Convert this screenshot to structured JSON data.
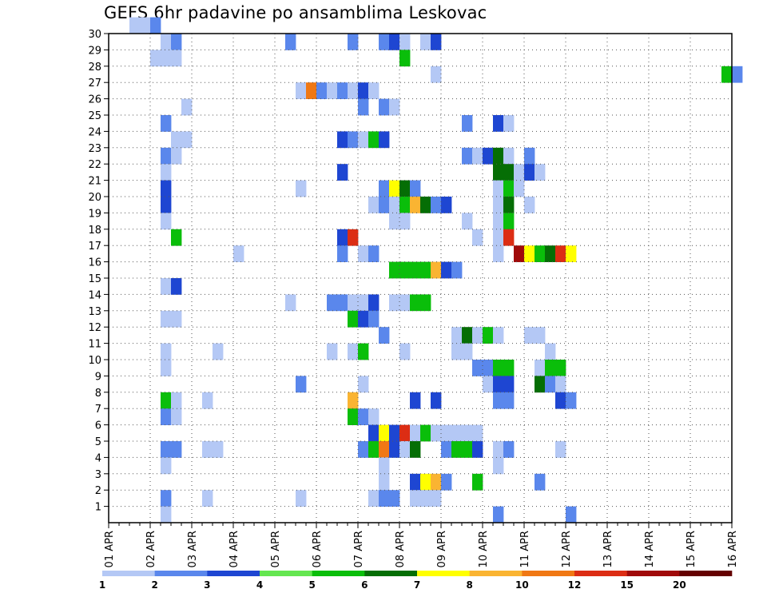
{
  "chart_data": {
    "type": "heatmap",
    "title": "GEFS 6hr padavine po ansamblima Leskovac",
    "x_tick_labels": [
      "01 APR",
      "02 APR",
      "03 APR",
      "04 APR",
      "05 APR",
      "06 APR",
      "07 APR",
      "08 APR",
      "09 APR",
      "10 APR",
      "11 APR",
      "12 APR",
      "13 APR",
      "14 APR",
      "15 APR",
      "16 APR"
    ],
    "y_tick_labels": [
      "1",
      "2",
      "3",
      "4",
      "5",
      "6",
      "7",
      "8",
      "9",
      "10",
      "11",
      "12",
      "13",
      "14",
      "15",
      "16",
      "17",
      "18",
      "19",
      "20",
      "21",
      "22",
      "23",
      "24",
      "25",
      "26",
      "27",
      "28",
      "29",
      "30"
    ],
    "x_range_steps": [
      0,
      60
    ],
    "y_range": [
      0,
      30
    ],
    "grid": true,
    "colorbar": {
      "labels": [
        "1",
        "2",
        "3",
        "4",
        "5",
        "6",
        "7",
        "8",
        "10",
        "12",
        "15",
        "20"
      ],
      "colors": [
        "#b4c8f5",
        "#5a87ec",
        "#1e46d2",
        "#64e650",
        "#0abe0a",
        "#056e05",
        "#ffff00",
        "#fab432",
        "#f07814",
        "#dc2d14",
        "#a00a0a",
        "#640000"
      ]
    },
    "cells": [
      [
        2,
        30,
        0
      ],
      [
        3,
        30,
        0
      ],
      [
        4,
        30,
        1
      ],
      [
        17,
        29,
        1
      ],
      [
        5,
        29,
        0
      ],
      [
        6,
        29,
        1
      ],
      [
        23,
        29,
        1
      ],
      [
        26,
        29,
        1
      ],
      [
        27,
        29,
        2
      ],
      [
        28,
        29,
        0
      ],
      [
        30,
        29,
        0
      ],
      [
        31,
        29,
        2
      ],
      [
        6,
        28,
        0
      ],
      [
        5,
        28,
        0
      ],
      [
        4,
        28,
        0
      ],
      [
        28,
        28,
        4
      ],
      [
        31,
        27,
        0
      ],
      [
        59,
        27,
        4
      ],
      [
        60,
        27,
        1
      ],
      [
        18,
        26,
        0
      ],
      [
        19,
        26,
        8
      ],
      [
        20,
        26,
        1
      ],
      [
        21,
        26,
        0
      ],
      [
        22,
        26,
        1
      ],
      [
        23,
        26,
        0
      ],
      [
        24,
        26,
        2
      ],
      [
        25,
        26,
        0
      ],
      [
        7,
        25,
        0
      ],
      [
        24,
        25,
        1
      ],
      [
        26,
        25,
        1
      ],
      [
        27,
        25,
        0
      ],
      [
        5,
        24,
        1
      ],
      [
        34,
        24,
        1
      ],
      [
        37,
        24,
        2
      ],
      [
        38,
        24,
        0
      ],
      [
        6,
        23,
        0
      ],
      [
        7,
        23,
        0
      ],
      [
        22,
        23,
        2
      ],
      [
        23,
        23,
        1
      ],
      [
        24,
        23,
        0
      ],
      [
        25,
        23,
        4
      ],
      [
        26,
        23,
        2
      ],
      [
        5,
        22,
        1
      ],
      [
        6,
        22,
        0
      ],
      [
        34,
        22,
        1
      ],
      [
        35,
        22,
        0
      ],
      [
        36,
        22,
        2
      ],
      [
        37,
        22,
        5
      ],
      [
        38,
        22,
        0
      ],
      [
        40,
        22,
        1
      ],
      [
        5,
        21,
        0
      ],
      [
        22,
        21,
        2
      ],
      [
        37,
        21,
        5
      ],
      [
        38,
        21,
        5
      ],
      [
        39,
        21,
        0
      ],
      [
        40,
        21,
        2
      ],
      [
        41,
        21,
        0
      ],
      [
        5,
        20,
        2
      ],
      [
        18,
        20,
        0
      ],
      [
        26,
        20,
        1
      ],
      [
        27,
        20,
        6
      ],
      [
        28,
        20,
        5
      ],
      [
        29,
        20,
        1
      ],
      [
        37,
        20,
        0
      ],
      [
        38,
        20,
        4
      ],
      [
        39,
        20,
        0
      ],
      [
        5,
        19,
        2
      ],
      [
        25,
        19,
        0
      ],
      [
        26,
        19,
        1
      ],
      [
        27,
        19,
        0
      ],
      [
        28,
        19,
        4
      ],
      [
        29,
        19,
        7
      ],
      [
        30,
        19,
        5
      ],
      [
        31,
        19,
        1
      ],
      [
        32,
        19,
        2
      ],
      [
        37,
        19,
        0
      ],
      [
        38,
        19,
        5
      ],
      [
        40,
        19,
        0
      ],
      [
        5,
        18,
        0
      ],
      [
        27,
        18,
        0
      ],
      [
        28,
        18,
        0
      ],
      [
        34,
        18,
        0
      ],
      [
        37,
        18,
        0
      ],
      [
        38,
        18,
        4
      ],
      [
        6,
        17,
        4
      ],
      [
        22,
        17,
        2
      ],
      [
        23,
        17,
        9
      ],
      [
        35,
        17,
        0
      ],
      [
        37,
        17,
        0
      ],
      [
        38,
        17,
        9
      ],
      [
        12,
        16,
        0
      ],
      [
        22,
        16,
        1
      ],
      [
        24,
        16,
        0
      ],
      [
        25,
        16,
        1
      ],
      [
        37,
        16,
        0
      ],
      [
        39,
        16,
        10
      ],
      [
        40,
        16,
        6
      ],
      [
        41,
        16,
        4
      ],
      [
        42,
        16,
        5
      ],
      [
        43,
        16,
        9
      ],
      [
        44,
        16,
        6
      ],
      [
        27,
        15,
        4
      ],
      [
        28,
        15,
        4
      ],
      [
        29,
        15,
        4
      ],
      [
        30,
        15,
        4
      ],
      [
        31,
        15,
        7
      ],
      [
        32,
        15,
        2
      ],
      [
        33,
        15,
        1
      ],
      [
        5,
        14,
        0
      ],
      [
        6,
        14,
        2
      ],
      [
        17,
        13,
        0
      ],
      [
        21,
        13,
        1
      ],
      [
        22,
        13,
        1
      ],
      [
        23,
        13,
        0
      ],
      [
        24,
        13,
        0
      ],
      [
        25,
        13,
        2
      ],
      [
        27,
        13,
        0
      ],
      [
        28,
        13,
        0
      ],
      [
        29,
        13,
        4
      ],
      [
        30,
        13,
        4
      ],
      [
        5,
        12,
        0
      ],
      [
        6,
        12,
        0
      ],
      [
        23,
        12,
        4
      ],
      [
        24,
        12,
        2
      ],
      [
        25,
        12,
        1
      ],
      [
        26,
        11,
        1
      ],
      [
        33,
        11,
        0
      ],
      [
        34,
        11,
        5
      ],
      [
        35,
        11,
        0
      ],
      [
        36,
        11,
        4
      ],
      [
        37,
        11,
        0
      ],
      [
        40,
        11,
        0
      ],
      [
        41,
        11,
        0
      ],
      [
        5,
        10,
        0
      ],
      [
        10,
        10,
        0
      ],
      [
        21,
        10,
        0
      ],
      [
        23,
        10,
        0
      ],
      [
        24,
        10,
        4
      ],
      [
        28,
        10,
        0
      ],
      [
        33,
        10,
        0
      ],
      [
        34,
        10,
        0
      ],
      [
        42,
        10,
        0
      ],
      [
        5,
        9,
        0
      ],
      [
        35,
        9,
        1
      ],
      [
        36,
        9,
        1
      ],
      [
        37,
        9,
        4
      ],
      [
        38,
        9,
        4
      ],
      [
        41,
        9,
        0
      ],
      [
        42,
        9,
        4
      ],
      [
        43,
        9,
        4
      ],
      [
        18,
        8,
        1
      ],
      [
        24,
        8,
        0
      ],
      [
        36,
        8,
        0
      ],
      [
        37,
        8,
        2
      ],
      [
        38,
        8,
        2
      ],
      [
        41,
        8,
        5
      ],
      [
        42,
        8,
        1
      ],
      [
        43,
        8,
        0
      ],
      [
        5,
        7,
        4
      ],
      [
        6,
        7,
        0
      ],
      [
        9,
        7,
        0
      ],
      [
        23,
        7,
        7
      ],
      [
        29,
        7,
        2
      ],
      [
        31,
        7,
        2
      ],
      [
        37,
        7,
        1
      ],
      [
        38,
        7,
        1
      ],
      [
        43,
        7,
        2
      ],
      [
        44,
        7,
        1
      ],
      [
        5,
        6,
        1
      ],
      [
        6,
        6,
        0
      ],
      [
        23,
        6,
        4
      ],
      [
        24,
        6,
        1
      ],
      [
        25,
        6,
        0
      ],
      [
        25,
        5,
        2
      ],
      [
        26,
        5,
        6
      ],
      [
        27,
        5,
        2
      ],
      [
        28,
        5,
        9
      ],
      [
        29,
        5,
        0
      ],
      [
        30,
        5,
        4
      ],
      [
        31,
        5,
        0
      ],
      [
        32,
        5,
        0
      ],
      [
        33,
        5,
        0
      ],
      [
        34,
        5,
        0
      ],
      [
        35,
        5,
        0
      ],
      [
        5,
        4,
        1
      ],
      [
        6,
        4,
        1
      ],
      [
        9,
        4,
        0
      ],
      [
        10,
        4,
        0
      ],
      [
        24,
        4,
        1
      ],
      [
        25,
        4,
        4
      ],
      [
        26,
        4,
        8
      ],
      [
        27,
        4,
        2
      ],
      [
        28,
        4,
        0
      ],
      [
        29,
        4,
        5
      ],
      [
        32,
        4,
        1
      ],
      [
        33,
        4,
        4
      ],
      [
        34,
        4,
        4
      ],
      [
        35,
        4,
        2
      ],
      [
        37,
        4,
        0
      ],
      [
        38,
        4,
        1
      ],
      [
        43,
        4,
        0
      ],
      [
        5,
        3,
        0
      ],
      [
        26,
        3,
        0
      ],
      [
        37,
        3,
        0
      ],
      [
        26,
        2,
        0
      ],
      [
        29,
        2,
        2
      ],
      [
        30,
        2,
        6
      ],
      [
        31,
        2,
        7
      ],
      [
        32,
        2,
        1
      ],
      [
        35,
        2,
        4
      ],
      [
        41,
        2,
        1
      ],
      [
        5,
        1,
        1
      ],
      [
        9,
        1,
        0
      ],
      [
        18,
        1,
        0
      ],
      [
        25,
        1,
        0
      ],
      [
        26,
        1,
        1
      ],
      [
        27,
        1,
        1
      ],
      [
        29,
        1,
        0
      ],
      [
        30,
        1,
        0
      ],
      [
        31,
        1,
        0
      ],
      [
        5,
        0,
        0
      ],
      [
        37,
        0,
        1
      ],
      [
        44,
        0,
        1
      ]
    ]
  }
}
